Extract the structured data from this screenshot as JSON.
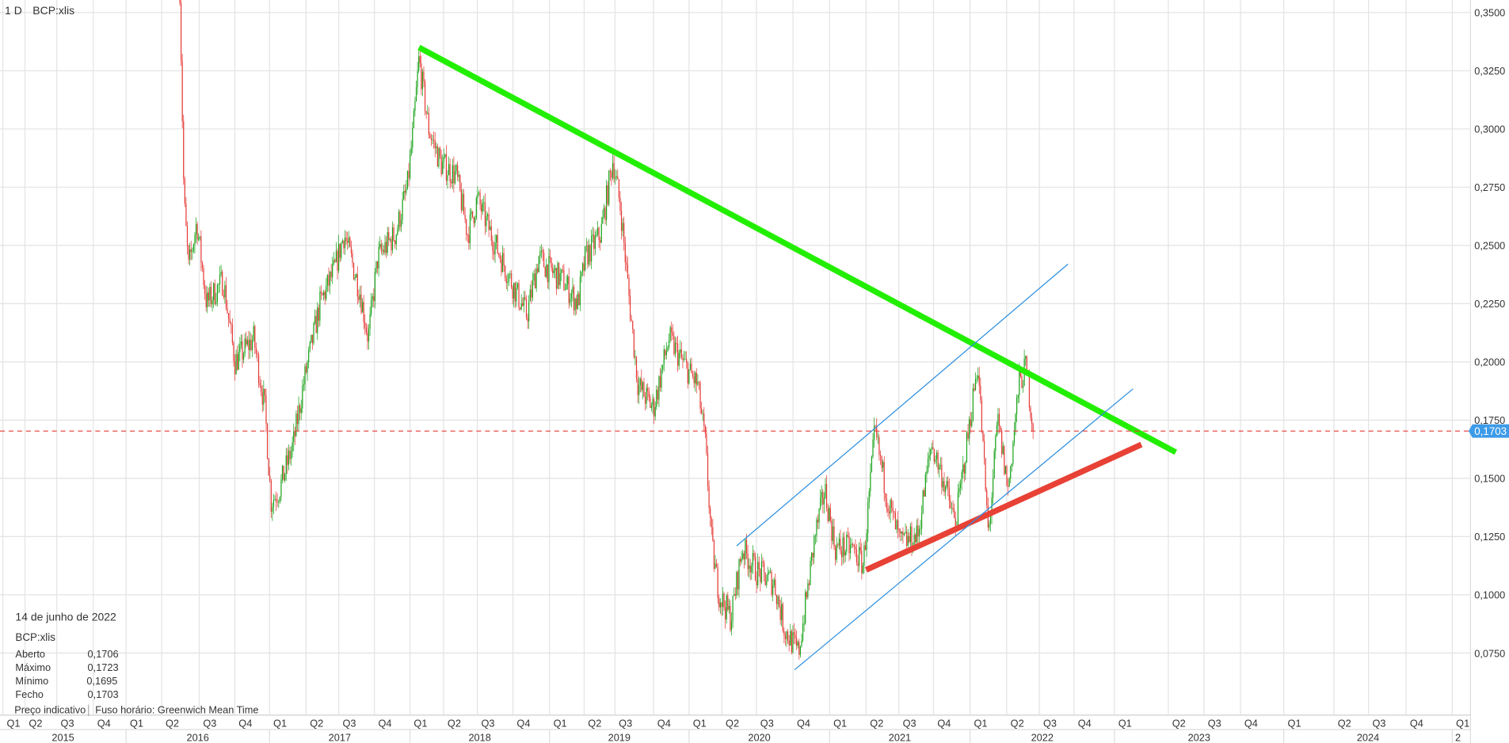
{
  "header": {
    "interval": "1 D",
    "symbol": "BCP:xlis"
  },
  "info_box": {
    "date": "14 de junho de 2022",
    "symbol": "BCP:xlis",
    "rows": [
      {
        "label": "Aberto",
        "value": "0,1706"
      },
      {
        "label": "Máximo",
        "value": "0,1723"
      },
      {
        "label": "Mínimo",
        "value": "0,1695"
      },
      {
        "label": "Fecho",
        "value": "0,1703"
      }
    ],
    "footer_left": "Preço indicativo",
    "footer_right": "Fuso horário: Greenwich Mean Time"
  },
  "chart_data": {
    "type": "candlestick",
    "title": "",
    "y_ticks": [
      "0,3500",
      "0,3250",
      "0,3000",
      "0,2750",
      "0,2500",
      "0,2250",
      "0,2000",
      "0,1750",
      "0,1500",
      "0,1250",
      "0,1000",
      "0,0750"
    ],
    "y_tick_values": [
      0.35,
      0.325,
      0.3,
      0.275,
      0.25,
      0.225,
      0.2,
      0.175,
      0.15,
      0.125,
      0.1,
      0.075
    ],
    "ylim": [
      0.055,
      0.355
    ],
    "x_years": [
      "2015",
      "2016",
      "2017",
      "2018",
      "2019",
      "2020",
      "2021",
      "2022",
      "2023",
      "2024",
      "2"
    ],
    "x_quarters": [
      "Q1",
      "Q2",
      "Q3",
      "Q4",
      "Q1",
      "Q2",
      "Q3",
      "Q4",
      "Q1",
      "Q2",
      "Q3",
      "Q4",
      "Q1",
      "Q2",
      "Q3",
      "Q4",
      "Q1",
      "Q2",
      "Q3",
      "Q4",
      "Q1",
      "Q2",
      "Q3",
      "Q4",
      "Q1",
      "Q2",
      "Q3",
      "Q4",
      "Q1",
      "Q2",
      "Q3",
      "Q4",
      "Q1",
      "Q2",
      "Q3",
      "Q4",
      "Q1",
      "Q2",
      "Q3",
      "Q4",
      "Q1"
    ],
    "grid": true,
    "current_price": {
      "value": 0.1703,
      "label": "0,1703",
      "color": "#e53935",
      "badge_color": "#3d9be9"
    },
    "colors": {
      "up": "#1aa31a",
      "down": "#e53935"
    },
    "close_series_approx": [
      [
        "2016-05-15",
        0.36
      ],
      [
        "2016-05-25",
        0.27
      ],
      [
        "2016-06-05",
        0.24
      ],
      [
        "2016-06-25",
        0.26
      ],
      [
        "2016-07-20",
        0.225
      ],
      [
        "2016-09-01",
        0.235
      ],
      [
        "2016-10-01",
        0.2
      ],
      [
        "2016-11-20",
        0.21
      ],
      [
        "2016-12-20",
        0.18
      ],
      [
        "2017-01-05",
        0.14
      ],
      [
        "2017-01-25",
        0.145
      ],
      [
        "2017-03-01",
        0.165
      ],
      [
        "2017-03-25",
        0.19
      ],
      [
        "2017-05-10",
        0.225
      ],
      [
        "2017-06-20",
        0.24
      ],
      [
        "2017-07-15",
        0.255
      ],
      [
        "2017-08-25",
        0.23
      ],
      [
        "2017-09-15",
        0.21
      ],
      [
        "2017-10-10",
        0.245
      ],
      [
        "2017-11-25",
        0.255
      ],
      [
        "2017-12-25",
        0.275
      ],
      [
        "2018-01-10",
        0.3
      ],
      [
        "2018-01-25",
        0.33
      ],
      [
        "2018-02-20",
        0.3
      ],
      [
        "2018-03-25",
        0.285
      ],
      [
        "2018-05-05",
        0.28
      ],
      [
        "2018-06-05",
        0.255
      ],
      [
        "2018-07-01",
        0.27
      ],
      [
        "2018-08-05",
        0.255
      ],
      [
        "2018-09-25",
        0.235
      ],
      [
        "2018-11-05",
        0.22
      ],
      [
        "2018-12-05",
        0.245
      ],
      [
        "2018-12-28",
        0.24
      ],
      [
        "2019-02-05",
        0.235
      ],
      [
        "2019-03-15",
        0.225
      ],
      [
        "2019-04-05",
        0.245
      ],
      [
        "2019-05-20",
        0.255
      ],
      [
        "2019-06-25",
        0.287
      ],
      [
        "2019-07-15",
        0.265
      ],
      [
        "2019-08-05",
        0.225
      ],
      [
        "2019-08-25",
        0.19
      ],
      [
        "2019-10-01",
        0.18
      ],
      [
        "2019-11-10",
        0.21
      ],
      [
        "2019-12-15",
        0.2
      ],
      [
        "2020-01-25",
        0.19
      ],
      [
        "2020-02-15",
        0.165
      ],
      [
        "2020-03-05",
        0.12
      ],
      [
        "2020-03-25",
        0.1
      ],
      [
        "2020-04-25",
        0.09
      ],
      [
        "2020-05-25",
        0.12
      ],
      [
        "2020-07-01",
        0.11
      ],
      [
        "2020-08-15",
        0.105
      ],
      [
        "2020-09-10",
        0.085
      ],
      [
        "2020-10-15",
        0.075
      ],
      [
        "2020-11-05",
        0.1
      ],
      [
        "2020-11-25",
        0.125
      ],
      [
        "2020-12-20",
        0.145
      ],
      [
        "2021-01-15",
        0.12
      ],
      [
        "2021-02-25",
        0.12
      ],
      [
        "2021-03-25",
        0.113
      ],
      [
        "2021-04-25",
        0.17
      ],
      [
        "2021-06-01",
        0.14
      ],
      [
        "2021-07-05",
        0.122
      ],
      [
        "2021-08-20",
        0.125
      ],
      [
        "2021-09-25",
        0.165
      ],
      [
        "2021-10-25",
        0.15
      ],
      [
        "2021-11-25",
        0.13
      ],
      [
        "2021-12-28",
        0.17
      ],
      [
        "2022-01-20",
        0.2
      ],
      [
        "2022-02-15",
        0.125
      ],
      [
        "2022-03-10",
        0.175
      ],
      [
        "2022-04-05",
        0.145
      ],
      [
        "2022-05-05",
        0.19
      ],
      [
        "2022-05-25",
        0.198
      ],
      [
        "2022-06-14",
        0.1703
      ]
    ],
    "drawings": [
      {
        "name": "resistance-trendline",
        "color": "#22ee00",
        "from": [
          "2018-01-25",
          0.335
        ],
        "to": [
          "2023-04-20",
          0.1612
        ]
      },
      {
        "name": "support-trendline",
        "color": "#e84135",
        "from": [
          "2021-04-01",
          0.1107
        ],
        "to": [
          "2023-02-15",
          0.1645
        ]
      },
      {
        "name": "channel-upper-line",
        "color": "#2b8ee0",
        "from": [
          "2020-05-10",
          0.121
        ],
        "to": [
          "2022-09-15",
          0.242
        ]
      },
      {
        "name": "channel-lower-line",
        "color": "#2b8ee0",
        "from": [
          "2020-10-05",
          0.0678
        ],
        "to": [
          "2023-02-01",
          0.1884
        ]
      }
    ]
  }
}
